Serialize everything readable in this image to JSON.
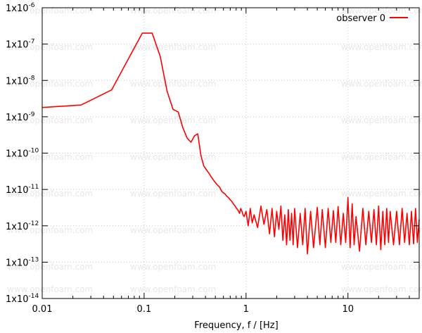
{
  "chart_data": {
    "type": "line",
    "xlabel": "Frequency, f / [Hz]",
    "ylabel": "",
    "x_scale": "log",
    "y_scale": "log",
    "xlim": [
      0.01,
      50
    ],
    "ylim": [
      1e-14,
      1e-06
    ],
    "x_ticks": [
      {
        "value": 0.01,
        "label": "0.01"
      },
      {
        "value": 0.1,
        "label": "0.1"
      },
      {
        "value": 1,
        "label": "1"
      },
      {
        "value": 10,
        "label": "10"
      }
    ],
    "y_ticks": [
      {
        "value": 1e-14,
        "base": "1x10",
        "exp": "-14"
      },
      {
        "value": 1e-13,
        "base": "1x10",
        "exp": "-13"
      },
      {
        "value": 1e-12,
        "base": "1x10",
        "exp": "-12"
      },
      {
        "value": 1e-11,
        "base": "1x10",
        "exp": "-11"
      },
      {
        "value": 1e-10,
        "base": "1x10",
        "exp": "-10"
      },
      {
        "value": 1e-09,
        "base": "1x10",
        "exp": "-9"
      },
      {
        "value": 1e-08,
        "base": "1x10",
        "exp": "-8"
      },
      {
        "value": 1e-07,
        "base": "1x10",
        "exp": "-7"
      },
      {
        "value": 1e-06,
        "base": "1x10",
        "exp": "-6"
      }
    ],
    "grid": true,
    "legend_position": "top-right",
    "watermark": "www.openfoam.com",
    "series": [
      {
        "name": "observer 0",
        "color": "#ff0000",
        "x": [
          0.01,
          0.024,
          0.048,
          0.072,
          0.096,
          0.12,
          0.144,
          0.168,
          0.192,
          0.216,
          0.24,
          0.264,
          0.288,
          0.312,
          0.336,
          0.36,
          0.384,
          0.408,
          0.432,
          0.456,
          0.48,
          0.504,
          0.528,
          0.552,
          0.576,
          0.6,
          0.624,
          0.648,
          0.672,
          0.696,
          0.72,
          0.744,
          0.768,
          0.792,
          0.816,
          0.84,
          0.864,
          0.888,
          0.912,
          0.936,
          0.96,
          1.0,
          1.05,
          1.1,
          1.15,
          1.2,
          1.3,
          1.4,
          1.5,
          1.6,
          1.7,
          1.8,
          1.9,
          2.0,
          2.1,
          2.2,
          2.3,
          2.4,
          2.5,
          2.6,
          2.7,
          2.8,
          2.9,
          3.0,
          3.2,
          3.4,
          3.6,
          3.8,
          4.0,
          4.3,
          4.6,
          5.0,
          5.3,
          5.6,
          6.0,
          6.4,
          6.8,
          7.2,
          7.6,
          8.0,
          8.5,
          9.0,
          9.5,
          10.0,
          10.5,
          11.0,
          11.5,
          12.0,
          13.0,
          14.0,
          15.0,
          16.0,
          17.0,
          18.0,
          19.0,
          20.0,
          21.0,
          22.0,
          23.0,
          24.0,
          25.0,
          26.0,
          28.0,
          30.0,
          32.0,
          34.0,
          36.0,
          38.0,
          40.0,
          42.0,
          44.0,
          46.0,
          48.0,
          50.0
        ],
        "y": [
          1.8e-09,
          2.1e-09,
          5.5e-09,
          4.5e-08,
          2e-07,
          2e-07,
          4.5e-08,
          5e-09,
          1.6e-09,
          1.35e-09,
          5e-10,
          2.6e-10,
          2e-10,
          3e-10,
          3.4e-10,
          9e-11,
          4.5e-11,
          3.5e-11,
          2.8e-11,
          2.2e-11,
          1.8e-11,
          1.5e-11,
          1.3e-11,
          1.15e-11,
          9e-12,
          8e-12,
          7.5e-12,
          6.5e-12,
          6e-12,
          5.3e-12,
          4.8e-12,
          4.2e-12,
          3.7e-12,
          3.3e-12,
          2.9e-12,
          2.6e-12,
          2.2e-12,
          3e-12,
          2.5e-12,
          2e-12,
          1.8e-12,
          2.5e-12,
          1e-12,
          3e-12,
          1.2e-12,
          2e-12,
          9e-13,
          3.5e-12,
          1.1e-12,
          2.8e-12,
          6e-13,
          3e-12,
          5e-13,
          2.5e-12,
          8e-13,
          3.5e-12,
          4e-13,
          2e-12,
          3e-13,
          2.8e-12,
          4e-13,
          2.2e-12,
          3e-13,
          3e-12,
          2.5e-13,
          2.2e-12,
          3e-13,
          3e-12,
          1.7e-13,
          2.5e-12,
          2.5e-13,
          3.2e-12,
          3e-13,
          2.8e-12,
          2.5e-13,
          3e-12,
          3.5e-13,
          2.6e-12,
          3.5e-13,
          3.4e-12,
          3e-13,
          2.2e-12,
          3.5e-13,
          6e-12,
          2.5e-13,
          4e-12,
          3e-13,
          1.8e-12,
          2e-13,
          3e-12,
          3e-13,
          2.5e-12,
          3.5e-13,
          2.8e-12,
          3e-13,
          3.5e-12,
          2.2e-13,
          2.5e-12,
          3e-13,
          3e-12,
          3.5e-13,
          2.5e-12,
          3e-13,
          2.5e-12,
          3e-13,
          3e-12,
          3.5e-13,
          2.2e-12,
          3e-13,
          2.5e-12,
          3.2e-13,
          3e-12,
          3.5e-13,
          1.5e-12
        ]
      }
    ]
  }
}
